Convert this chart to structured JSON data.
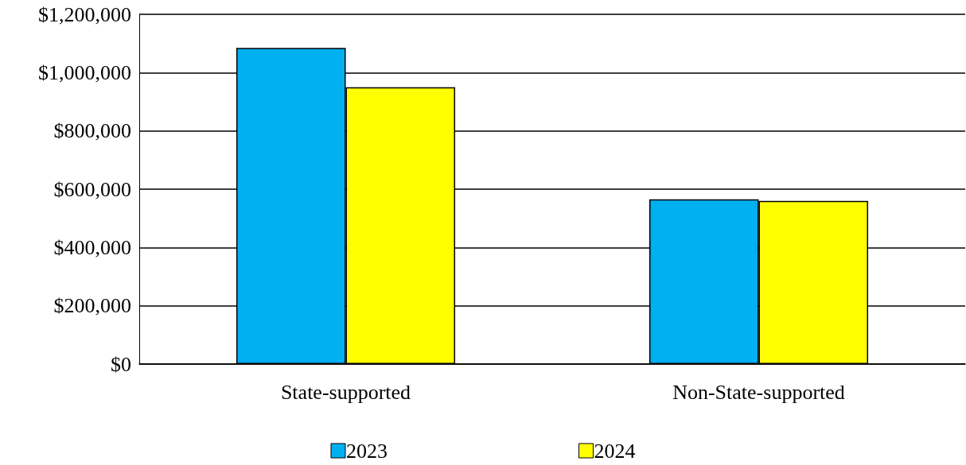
{
  "chart_data": {
    "type": "bar",
    "categories": [
      "State-supported",
      "Non-State-supported"
    ],
    "series": [
      {
        "name": "2023",
        "color": "#00b0f0",
        "values": [
          1085000,
          565000
        ]
      },
      {
        "name": "2024",
        "color": "#ffff00",
        "values": [
          950000,
          560000
        ]
      }
    ],
    "ylim": [
      0,
      1200000
    ],
    "yticks": [
      {
        "value": 0,
        "label": "$0"
      },
      {
        "value": 200000,
        "label": "$200,000"
      },
      {
        "value": 400000,
        "label": "$400,000"
      },
      {
        "value": 600000,
        "label": "$600,000"
      },
      {
        "value": 800000,
        "label": "$800,000"
      },
      {
        "value": 1000000,
        "label": "$1,000,000"
      },
      {
        "value": 1200000,
        "label": "$1,200,000"
      }
    ],
    "grid": "y",
    "legend": "bottom"
  }
}
